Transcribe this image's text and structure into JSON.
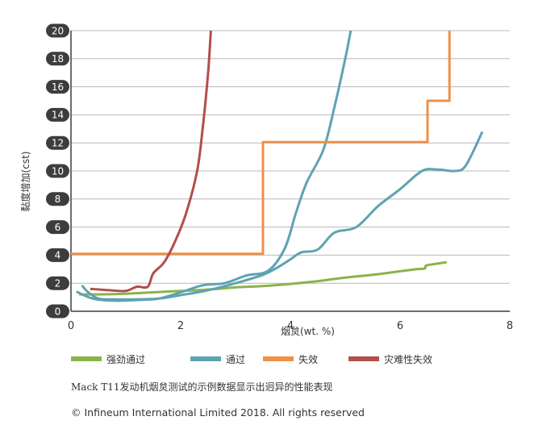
{
  "chart_data": {
    "type": "line",
    "xlabel": "烟炱(wt. %)",
    "ylabel": "黏度增加(cst)",
    "xlim": [
      0,
      8
    ],
    "ylim": [
      0,
      20
    ],
    "x_ticks": [
      "0",
      "2",
      "4",
      "6",
      "8"
    ],
    "y_ticks": [
      "0",
      "2",
      "4",
      "6",
      "8",
      "10",
      "12",
      "14",
      "16",
      "18",
      "20"
    ],
    "grid": "horizontal",
    "legend_position": "bottom",
    "series": [
      {
        "name": "强劲通过",
        "color": "#8cb34a",
        "points": [
          [
            0.15,
            1.2
          ],
          [
            0.5,
            1.2
          ],
          [
            1.0,
            1.25
          ],
          [
            1.5,
            1.35
          ],
          [
            2.0,
            1.45
          ],
          [
            2.5,
            1.55
          ],
          [
            3.0,
            1.7
          ],
          [
            3.5,
            1.8
          ],
          [
            4.0,
            1.95
          ],
          [
            4.5,
            2.15
          ],
          [
            5.0,
            2.4
          ],
          [
            5.5,
            2.6
          ],
          [
            6.0,
            2.85
          ],
          [
            6.3,
            3.0
          ],
          [
            6.45,
            3.05
          ],
          [
            6.47,
            3.25
          ],
          [
            6.6,
            3.35
          ],
          [
            6.85,
            3.5
          ]
        ]
      },
      {
        "name": "通过",
        "color": "#5ea3b1",
        "points": [
          [
            0.2,
            1.85
          ],
          [
            0.3,
            1.4
          ],
          [
            0.5,
            0.9
          ],
          [
            0.8,
            0.85
          ],
          [
            1.2,
            0.85
          ],
          [
            1.6,
            0.9
          ],
          [
            2.0,
            1.15
          ],
          [
            2.5,
            1.5
          ],
          [
            3.0,
            2.0
          ],
          [
            3.5,
            2.6
          ],
          [
            3.8,
            3.2
          ],
          [
            4.0,
            3.7
          ],
          [
            4.2,
            4.2
          ],
          [
            4.5,
            4.4
          ],
          [
            4.8,
            5.6
          ],
          [
            5.2,
            6.0
          ],
          [
            5.6,
            7.5
          ],
          [
            6.0,
            8.7
          ],
          [
            6.4,
            10.0
          ],
          [
            6.7,
            10.1
          ],
          [
            7.0,
            10.0
          ],
          [
            7.2,
            10.4
          ],
          [
            7.5,
            12.8
          ]
        ]
      },
      {
        "name": "通过",
        "color": "#5ea3b1",
        "points": [
          [
            0.1,
            1.4
          ],
          [
            0.4,
            0.9
          ],
          [
            0.8,
            0.75
          ],
          [
            1.2,
            0.8
          ],
          [
            1.6,
            0.9
          ],
          [
            2.0,
            1.35
          ],
          [
            2.4,
            1.85
          ],
          [
            2.8,
            2.0
          ],
          [
            3.2,
            2.55
          ],
          [
            3.6,
            2.9
          ],
          [
            3.9,
            4.5
          ],
          [
            4.1,
            7.0
          ],
          [
            4.3,
            9.2
          ],
          [
            4.6,
            11.5
          ],
          [
            4.8,
            14.5
          ],
          [
            5.0,
            18.0
          ],
          [
            5.1,
            20
          ]
        ]
      },
      {
        "name": "失效",
        "color": "#ec914a",
        "points": [
          [
            0,
            4.1
          ],
          [
            3.5,
            4.1
          ],
          [
            3.5,
            12.05
          ],
          [
            6.5,
            12.05
          ],
          [
            6.5,
            15.0
          ],
          [
            6.9,
            15.0
          ],
          [
            6.9,
            20
          ]
        ]
      },
      {
        "name": "灾难性失效",
        "color": "#b24e4c",
        "points": [
          [
            0.35,
            1.6
          ],
          [
            0.7,
            1.5
          ],
          [
            1.0,
            1.45
          ],
          [
            1.2,
            1.75
          ],
          [
            1.4,
            1.75
          ],
          [
            1.5,
            2.7
          ],
          [
            1.7,
            3.5
          ],
          [
            1.9,
            5.0
          ],
          [
            2.1,
            7.0
          ],
          [
            2.3,
            10.0
          ],
          [
            2.4,
            13.0
          ],
          [
            2.5,
            17.0
          ],
          [
            2.55,
            20
          ]
        ]
      }
    ]
  },
  "legend": [
    {
      "label": "强劲通过",
      "color": "#8cb34a"
    },
    {
      "label": "通过",
      "color": "#5ea3b1"
    },
    {
      "label": "失效",
      "color": "#ec914a"
    },
    {
      "label": "灾难性失效",
      "color": "#b24e4c"
    }
  ],
  "caption": "Mack T11发动机烟炱测试的示例数据显示出迥异的性能表现",
  "copyright": "© Infineum International Limited 2018. All rights reserved"
}
